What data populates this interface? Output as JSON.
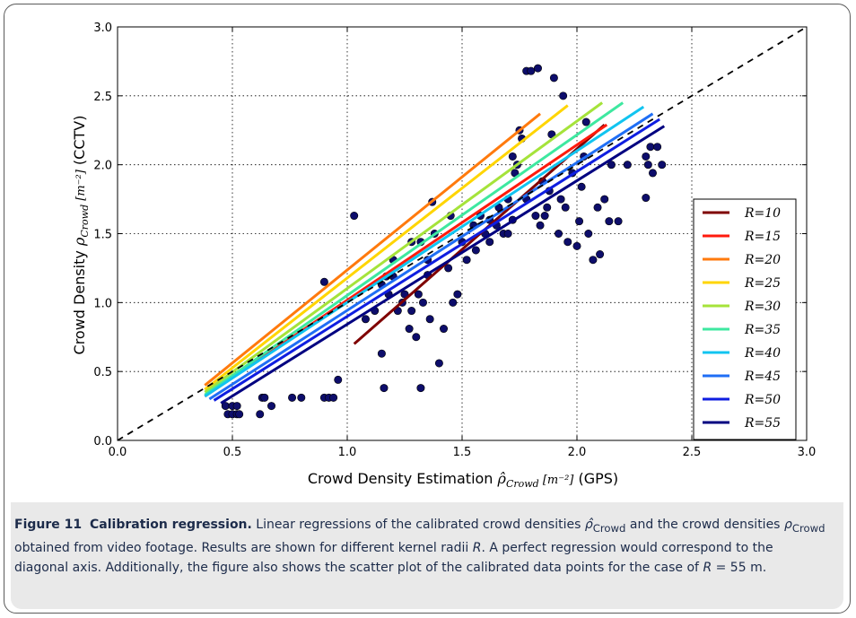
{
  "chart_data": {
    "type": "scatter",
    "xlabel_prefix": "Crowd Density Estimation ",
    "xlabel_math": "ρ̂",
    "xlabel_sub": "Crowd",
    "xlabel_unit": " [m⁻²]",
    "xlabel_suffix": " (GPS)",
    "ylabel_prefix": "Crowd Density ",
    "ylabel_math": "ρ",
    "ylabel_sub": "Crowd",
    "ylabel_unit": " [m⁻²]",
    "ylabel_suffix": " (CCTV)",
    "xlim": [
      0.0,
      3.0
    ],
    "ylim": [
      0.0,
      3.0
    ],
    "xticks": [
      "0.0",
      "0.5",
      "1.0",
      "1.5",
      "2.0",
      "2.5",
      "3.0"
    ],
    "yticks": [
      "0.0",
      "0.5",
      "1.0",
      "1.5",
      "2.0",
      "2.5",
      "3.0"
    ],
    "grid": true,
    "legend_position": "right",
    "diagonal": {
      "x": [
        0,
        3
      ],
      "y": [
        0,
        3
      ],
      "style": "dashed",
      "color": "#000000"
    },
    "series": [
      {
        "name": "R=10",
        "color": "#7f0000",
        "x": [
          1.03,
          2.12
        ],
        "y": [
          0.7,
          2.29
        ]
      },
      {
        "name": "R=15",
        "color": "#ff1a0d",
        "x": [
          0.38,
          2.13
        ],
        "y": [
          0.32,
          2.29
        ]
      },
      {
        "name": "R=20",
        "color": "#ff7a0d",
        "x": [
          0.38,
          1.84
        ],
        "y": [
          0.4,
          2.37
        ]
      },
      {
        "name": "R=25",
        "color": "#ffd500",
        "x": [
          0.38,
          1.96
        ],
        "y": [
          0.37,
          2.43
        ]
      },
      {
        "name": "R=30",
        "color": "#a5e33a",
        "x": [
          0.38,
          2.11
        ],
        "y": [
          0.35,
          2.45
        ]
      },
      {
        "name": "R=35",
        "color": "#3ee8a0",
        "x": [
          0.38,
          2.2
        ],
        "y": [
          0.33,
          2.45
        ]
      },
      {
        "name": "R=40",
        "color": "#11c4f0",
        "x": [
          0.38,
          2.29
        ],
        "y": [
          0.32,
          2.42
        ]
      },
      {
        "name": "R=45",
        "color": "#1f6ef5",
        "x": [
          0.4,
          2.33
        ],
        "y": [
          0.3,
          2.37
        ]
      },
      {
        "name": "R=50",
        "color": "#0f1ee0",
        "x": [
          0.42,
          2.36
        ],
        "y": [
          0.29,
          2.33
        ]
      },
      {
        "name": "R=55",
        "color": "#000080",
        "x": [
          0.45,
          2.38
        ],
        "y": [
          0.27,
          2.28
        ]
      }
    ],
    "scatter": {
      "color": "#0d0d6b",
      "points": [
        [
          0.47,
          0.25
        ],
        [
          0.48,
          0.19
        ],
        [
          0.5,
          0.25
        ],
        [
          0.5,
          0.19
        ],
        [
          0.52,
          0.25
        ],
        [
          0.52,
          0.19
        ],
        [
          0.53,
          0.19
        ],
        [
          0.62,
          0.19
        ],
        [
          0.63,
          0.31
        ],
        [
          0.64,
          0.31
        ],
        [
          0.67,
          0.25
        ],
        [
          0.76,
          0.31
        ],
        [
          0.8,
          0.31
        ],
        [
          0.9,
          0.31
        ],
        [
          0.92,
          0.31
        ],
        [
          0.94,
          0.31
        ],
        [
          0.96,
          0.44
        ],
        [
          0.9,
          1.15
        ],
        [
          1.03,
          1.63
        ],
        [
          1.08,
          0.88
        ],
        [
          1.12,
          0.94
        ],
        [
          1.15,
          1.13
        ],
        [
          1.17,
          1.19
        ],
        [
          1.2,
          1.31
        ],
        [
          1.22,
          0.94
        ],
        [
          1.24,
          1.0
        ],
        [
          1.25,
          1.06
        ],
        [
          1.27,
          0.81
        ],
        [
          1.28,
          0.94
        ],
        [
          1.3,
          0.75
        ],
        [
          1.31,
          1.06
        ],
        [
          1.32,
          1.44
        ],
        [
          1.33,
          1.0
        ],
        [
          1.35,
          1.31
        ],
        [
          1.36,
          0.88
        ],
        [
          1.37,
          1.73
        ],
        [
          1.38,
          1.5
        ],
        [
          1.4,
          0.56
        ],
        [
          1.42,
          0.81
        ],
        [
          1.44,
          1.25
        ],
        [
          1.46,
          1.0
        ],
        [
          1.5,
          1.44
        ],
        [
          1.52,
          1.31
        ],
        [
          1.55,
          1.56
        ],
        [
          1.58,
          1.63
        ],
        [
          1.6,
          1.5
        ],
        [
          1.62,
          1.44
        ],
        [
          1.65,
          1.56
        ],
        [
          1.68,
          1.5
        ],
        [
          1.7,
          1.75
        ],
        [
          1.72,
          2.06
        ],
        [
          1.73,
          1.94
        ],
        [
          1.74,
          2.0
        ],
        [
          1.75,
          2.25
        ],
        [
          1.76,
          2.19
        ],
        [
          1.78,
          1.75
        ],
        [
          1.78,
          2.68
        ],
        [
          1.8,
          2.68
        ],
        [
          1.82,
          1.63
        ],
        [
          1.83,
          2.7
        ],
        [
          1.84,
          1.56
        ],
        [
          1.85,
          1.88
        ],
        [
          1.86,
          1.63
        ],
        [
          1.87,
          1.69
        ],
        [
          1.88,
          1.81
        ],
        [
          1.89,
          2.22
        ],
        [
          1.9,
          2.63
        ],
        [
          1.92,
          1.5
        ],
        [
          1.93,
          1.75
        ],
        [
          1.94,
          2.5
        ],
        [
          1.95,
          1.69
        ],
        [
          1.96,
          1.44
        ],
        [
          1.98,
          1.94
        ],
        [
          2.0,
          1.41
        ],
        [
          2.01,
          1.59
        ],
        [
          2.02,
          1.84
        ],
        [
          2.03,
          2.06
        ],
        [
          2.04,
          2.31
        ],
        [
          2.05,
          1.5
        ],
        [
          2.07,
          1.31
        ],
        [
          2.09,
          1.69
        ],
        [
          2.1,
          1.35
        ],
        [
          2.12,
          1.75
        ],
        [
          2.14,
          1.59
        ],
        [
          2.15,
          2.0
        ],
        [
          2.18,
          1.59
        ],
        [
          2.22,
          2.0
        ],
        [
          2.3,
          1.76
        ],
        [
          2.3,
          2.06
        ],
        [
          2.31,
          2.0
        ],
        [
          2.32,
          2.13
        ],
        [
          2.33,
          1.94
        ],
        [
          2.35,
          2.13
        ],
        [
          2.37,
          2.0
        ],
        [
          1.2,
          1.19
        ],
        [
          1.18,
          1.06
        ],
        [
          1.15,
          0.63
        ],
        [
          1.16,
          0.38
        ],
        [
          1.32,
          0.38
        ],
        [
          1.35,
          1.2
        ],
        [
          1.28,
          1.44
        ],
        [
          1.45,
          1.63
        ],
        [
          1.48,
          1.06
        ],
        [
          1.56,
          1.38
        ],
        [
          1.62,
          1.6
        ],
        [
          1.66,
          1.69
        ],
        [
          1.7,
          1.5
        ],
        [
          1.72,
          1.6
        ]
      ]
    }
  },
  "caption": {
    "figure_label": "Figure 11",
    "title": "Calibration regression.",
    "t1": " Linear regressions of the calibrated crowd densities ",
    "sym_hat": "ρ̂",
    "sub_crowd1": "Crowd",
    "t2": " and the crowd densities ",
    "sym_rho": "ρ",
    "sub_crowd2": "Crowd",
    "t3": " obtained from video footage. Results are shown for different kernel radii ",
    "sym_R": "R",
    "t4": ". A perfect regression would correspond to the diagonal axis. Additionally, the figure also shows the scatter plot of the calibrated data points for the case of ",
    "t5": "R",
    "t6": " = 55 m."
  }
}
